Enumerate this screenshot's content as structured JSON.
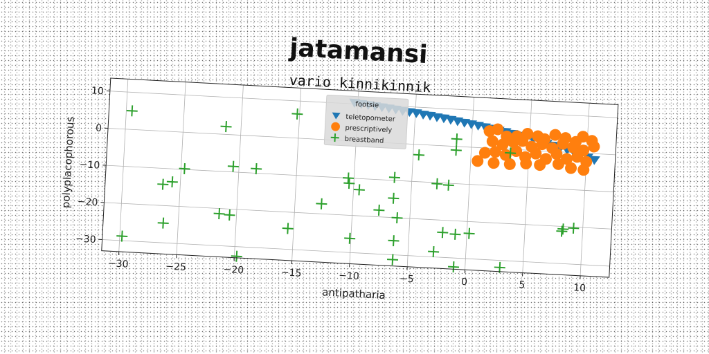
{
  "chart_data": {
    "type": "scatter",
    "title": "jatamansi",
    "subtitle": "vario kinnikinnik",
    "xlabel": "antipatharia",
    "ylabel": "polyplacophorous",
    "xlim": [
      -31.5,
      12.5
    ],
    "ylim": [
      -33,
      13.5
    ],
    "xticks": [
      -30,
      -25,
      -20,
      -15,
      -10,
      -5,
      0,
      5,
      10
    ],
    "yticks": [
      10,
      0,
      -10,
      -20,
      -30
    ],
    "grid": true,
    "legend": {
      "title": "footsie",
      "position": "top-center"
    },
    "series": [
      {
        "name": "teletopometer",
        "marker": "triangle-down",
        "color": "#1f77b4",
        "points": [
          [
            -10.3,
            10.3
          ],
          [
            -9.7,
            10.1
          ],
          [
            -9.1,
            9.9
          ],
          [
            -8.5,
            9.7
          ],
          [
            -7.9,
            9.5
          ],
          [
            -7.3,
            9.3
          ],
          [
            -6.7,
            9.1
          ],
          [
            -6.1,
            8.8
          ],
          [
            -5.5,
            8.6
          ],
          [
            -4.9,
            8.4
          ],
          [
            -4.3,
            8.1
          ],
          [
            -3.7,
            7.9
          ],
          [
            -3.1,
            7.6
          ],
          [
            -2.5,
            7.4
          ],
          [
            -1.9,
            7.1
          ],
          [
            -1.3,
            6.8
          ],
          [
            -0.7,
            6.5
          ],
          [
            -0.1,
            6.2
          ],
          [
            0.5,
            5.9
          ],
          [
            1.1,
            5.6
          ],
          [
            1.7,
            5.3
          ],
          [
            2.3,
            4.9
          ],
          [
            2.9,
            4.6
          ],
          [
            3.5,
            4.2
          ],
          [
            4.1,
            3.8
          ],
          [
            4.7,
            3.4
          ],
          [
            5.3,
            3.0
          ],
          [
            5.9,
            2.6
          ],
          [
            6.5,
            2.1
          ],
          [
            7.1,
            1.6
          ],
          [
            7.7,
            1.1
          ],
          [
            8.3,
            0.6
          ],
          [
            8.9,
            0.0
          ],
          [
            9.5,
            -0.5
          ],
          [
            10.1,
            -1.1
          ],
          [
            10.7,
            -1.7
          ]
        ]
      },
      {
        "name": "prescriptively",
        "marker": "circle",
        "color": "#ff7f0e",
        "points": [
          [
            1.5,
            4.6
          ],
          [
            2.2,
            5.2
          ],
          [
            3.0,
            3.4
          ],
          [
            3.9,
            3.6
          ],
          [
            4.8,
            4.4
          ],
          [
            5.7,
            3.9
          ],
          [
            6.3,
            3.2
          ],
          [
            7.2,
            4.5
          ],
          [
            8.1,
            3.8
          ],
          [
            9.0,
            2.9
          ],
          [
            9.6,
            4.4
          ],
          [
            10.4,
            3.4
          ],
          [
            1.8,
            1.9
          ],
          [
            2.7,
            1.2
          ],
          [
            3.6,
            2.0
          ],
          [
            4.4,
            2.4
          ],
          [
            5.2,
            1.0
          ],
          [
            6.1,
            1.8
          ],
          [
            7.0,
            0.9
          ],
          [
            7.9,
            2.2
          ],
          [
            8.8,
            1.4
          ],
          [
            9.7,
            0.7
          ],
          [
            10.6,
            1.9
          ],
          [
            1.2,
            -1.3
          ],
          [
            2.1,
            -0.9
          ],
          [
            3.0,
            -1.6
          ],
          [
            3.9,
            -0.4
          ],
          [
            4.7,
            -1.9
          ],
          [
            5.6,
            -0.8
          ],
          [
            6.5,
            -2.1
          ],
          [
            7.4,
            -0.6
          ],
          [
            8.3,
            -1.8
          ],
          [
            9.2,
            -1.1
          ],
          [
            10.0,
            -2.3
          ],
          [
            0.6,
            -3.6
          ],
          [
            2.0,
            -3.9
          ],
          [
            3.4,
            -4.0
          ],
          [
            4.8,
            -3.6
          ],
          [
            6.0,
            -3.8
          ],
          [
            7.6,
            -3.3
          ],
          [
            8.7,
            -4.2
          ],
          [
            9.8,
            -4.5
          ]
        ]
      },
      {
        "name": "breastband",
        "marker": "plus",
        "color": "#2ca02c",
        "points": [
          [
            -29.5,
            5.0
          ],
          [
            -21.3,
            2.1
          ],
          [
            -15.2,
            6.5
          ],
          [
            -1.3,
            2.0
          ],
          [
            -1.3,
            -1.0
          ],
          [
            3.4,
            -1.0
          ],
          [
            -4.5,
            -2.8
          ],
          [
            -20.5,
            -8.5
          ],
          [
            -18.5,
            -8.8
          ],
          [
            -24.7,
            -9.8
          ],
          [
            -10.5,
            -10.0
          ],
          [
            -10.4,
            -11.4
          ],
          [
            -9.5,
            -13.0
          ],
          [
            -6.5,
            -9.2
          ],
          [
            -2.8,
            -10.3
          ],
          [
            -1.8,
            -10.5
          ],
          [
            -26.5,
            -14.3
          ],
          [
            -25.7,
            -13.5
          ],
          [
            -6.5,
            -14.8
          ],
          [
            -12.7,
            -17.3
          ],
          [
            -7.7,
            -18.2
          ],
          [
            -6.1,
            -20.0
          ],
          [
            -21.5,
            -21.4
          ],
          [
            -20.6,
            -21.6
          ],
          [
            -15.5,
            -24.4
          ],
          [
            -2.1,
            -23.3
          ],
          [
            -1.0,
            -23.6
          ],
          [
            0.2,
            -23.2
          ],
          [
            -26.3,
            -24.7
          ],
          [
            -10.1,
            -26.2
          ],
          [
            -6.3,
            -26.2
          ],
          [
            -29.8,
            -28.8
          ],
          [
            -2.8,
            -28.6
          ],
          [
            -6.3,
            -31.3
          ],
          [
            -19.8,
            -32.6
          ],
          [
            -1.0,
            -32.4
          ],
          [
            3.0,
            -31.9
          ],
          [
            8.2,
            -21.3
          ],
          [
            8.3,
            -20.7
          ],
          [
            9.2,
            -20.3
          ]
        ]
      }
    ]
  }
}
